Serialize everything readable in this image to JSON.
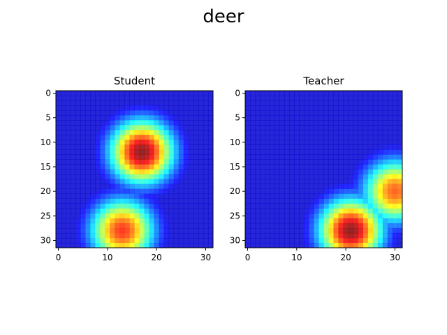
{
  "figure": {
    "title": "deer"
  },
  "chart_data": [
    {
      "type": "heatmap",
      "title": "Student",
      "xlabel": "",
      "ylabel": "",
      "xlim": [
        -0.5,
        31.5
      ],
      "ylim": [
        31.5,
        -0.5
      ],
      "xticks": [
        0,
        10,
        20,
        30
      ],
      "xtick_labels": [
        "0",
        "10",
        "20",
        "30"
      ],
      "yticks": [
        0,
        5,
        10,
        15,
        20,
        25,
        30
      ],
      "ytick_labels": [
        "0",
        "5",
        "10",
        "15",
        "20",
        "25",
        "30"
      ],
      "colormap": "jet",
      "grid": false,
      "legend": "none",
      "hotspots": [
        {
          "x": 17,
          "y": 12,
          "intensity": 1.0
        },
        {
          "x": 13,
          "y": 28,
          "intensity": 0.85
        }
      ]
    },
    {
      "type": "heatmap",
      "title": "Teacher",
      "xlabel": "",
      "ylabel": "",
      "xlim": [
        -0.5,
        31.5
      ],
      "ylim": [
        31.5,
        -0.5
      ],
      "xticks": [
        0,
        10,
        20,
        30
      ],
      "xtick_labels": [
        "0",
        "10",
        "20",
        "30"
      ],
      "yticks": [
        0,
        5,
        10,
        15,
        20,
        25,
        30
      ],
      "ytick_labels": [
        "0",
        "5",
        "10",
        "15",
        "20",
        "25",
        "30"
      ],
      "colormap": "jet",
      "grid": false,
      "legend": "none",
      "hotspots": [
        {
          "x": 21,
          "y": 28,
          "intensity": 1.0
        },
        {
          "x": 30,
          "y": 20,
          "intensity": 0.8
        }
      ]
    }
  ]
}
